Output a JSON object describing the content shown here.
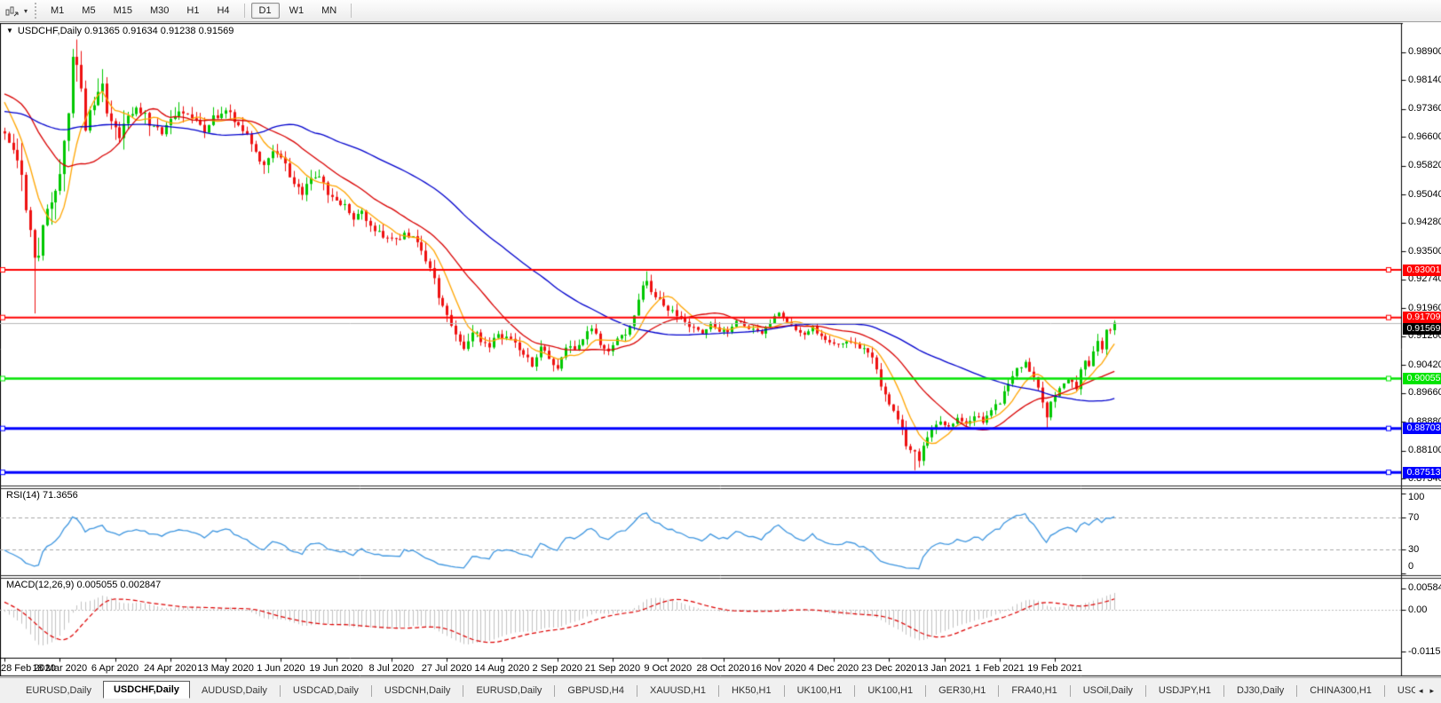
{
  "toolbar": {
    "dropdown_caret": "▾",
    "timeframes": [
      "M1",
      "M5",
      "M15",
      "M30",
      "H1",
      "H4",
      "D1",
      "W1",
      "MN"
    ],
    "active_timeframe": "D1"
  },
  "chart": {
    "collapse_caret": "▼",
    "title_symbol": "USDCHF,Daily",
    "ohlc": {
      "open": "0.91365",
      "high": "0.91634",
      "low": "0.91238",
      "close": "0.91569"
    }
  },
  "chart_data": {
    "type": "candlestick",
    "symbol": "USDCHF",
    "timeframe": "Daily",
    "bars": 262,
    "last_bar": {
      "open": 0.91365,
      "high": 0.91634,
      "low": 0.91238,
      "close": 0.91569
    },
    "candle_colors": {
      "up": "#00C800",
      "down": "#EE1111"
    },
    "price_axis": {
      "ticks": [
        "0.98900",
        "0.98140",
        "0.97360",
        "0.96600",
        "0.95820",
        "0.95040",
        "0.94280",
        "0.93500",
        "0.92740",
        "0.91960",
        "0.91200",
        "0.90420",
        "0.89660",
        "0.88880",
        "0.88100",
        "0.87340"
      ],
      "max": 0.9952,
      "min": 0.8718
    },
    "levels": [
      {
        "price": 0.93001,
        "label": "0.93001",
        "color": "#FF0000",
        "width": 2
      },
      {
        "price": 0.91709,
        "label": "0.91709",
        "color": "#FF0000",
        "width": 2
      },
      {
        "price": 0.90055,
        "label": "0.90055",
        "color": "#00E400",
        "width": 2.5
      },
      {
        "price": 0.88703,
        "label": "0.88703",
        "color": "#0000FF",
        "width": 3
      },
      {
        "price": 0.87513,
        "label": "0.87513",
        "color": "#0000FF",
        "width": 3
      }
    ],
    "current_price": {
      "value": 0.91569,
      "label": "0.91569",
      "line_color": "#B8B8B8",
      "label_bg": "#000000"
    },
    "moving_averages": [
      {
        "period": 8,
        "color": "#FFA500"
      },
      {
        "period": 21,
        "color": "#D90000"
      },
      {
        "period": 55,
        "color": "#0000CD"
      }
    ],
    "pre_path": [
      [
        -60,
        0.97
      ],
      [
        -40,
        0.9695
      ],
      [
        -25,
        0.9705
      ],
      [
        -12,
        0.98
      ],
      [
        -8,
        0.9848
      ],
      [
        -4,
        0.979
      ],
      [
        -1,
        0.9668
      ]
    ],
    "price_path": [
      [
        0,
        0.9665
      ],
      [
        2,
        0.9612
      ],
      [
        4,
        0.9555
      ],
      [
        6,
        0.94
      ],
      [
        7,
        0.931
      ],
      [
        8,
        0.9355
      ],
      [
        9,
        0.942
      ],
      [
        11,
        0.947
      ],
      [
        13,
        0.9555
      ],
      [
        15,
        0.9745
      ],
      [
        16,
        0.9855
      ],
      [
        17,
        0.983
      ],
      [
        18,
        0.977
      ],
      [
        19,
        0.969
      ],
      [
        21,
        0.9755
      ],
      [
        23,
        0.9785
      ],
      [
        25,
        0.97
      ],
      [
        27,
        0.9665
      ],
      [
        29,
        0.972
      ],
      [
        31,
        0.9742
      ],
      [
        34,
        0.97
      ],
      [
        37,
        0.9672
      ],
      [
        39,
        0.9715
      ],
      [
        41,
        0.9733
      ],
      [
        44,
        0.9705
      ],
      [
        47,
        0.9682
      ],
      [
        49,
        0.9712
      ],
      [
        52,
        0.9728
      ],
      [
        55,
        0.97
      ],
      [
        57,
        0.9668
      ],
      [
        59,
        0.9612
      ],
      [
        61,
        0.9586
      ],
      [
        63,
        0.9628
      ],
      [
        65,
        0.9608
      ],
      [
        68,
        0.9532
      ],
      [
        70,
        0.9506
      ],
      [
        72,
        0.9542
      ],
      [
        74,
        0.9558
      ],
      [
        76,
        0.9512
      ],
      [
        78,
        0.9482
      ],
      [
        80,
        0.9474
      ],
      [
        82,
        0.9442
      ],
      [
        84,
        0.9458
      ],
      [
        86,
        0.9422
      ],
      [
        88,
        0.9402
      ],
      [
        90,
        0.9386
      ],
      [
        92,
        0.9379
      ],
      [
        94,
        0.9398
      ],
      [
        96,
        0.9389
      ],
      [
        98,
        0.9352
      ],
      [
        100,
        0.9302
      ],
      [
        102,
        0.9232
      ],
      [
        104,
        0.9182
      ],
      [
        106,
        0.9132
      ],
      [
        108,
        0.9088
      ],
      [
        110,
        0.9136
      ],
      [
        112,
        0.9112
      ],
      [
        114,
        0.9088
      ],
      [
        116,
        0.9128
      ],
      [
        118,
        0.9116
      ],
      [
        120,
        0.9104
      ],
      [
        122,
        0.9072
      ],
      [
        124,
        0.9042
      ],
      [
        126,
        0.9088
      ],
      [
        128,
        0.9062
      ],
      [
        130,
        0.9036
      ],
      [
        132,
        0.9094
      ],
      [
        134,
        0.9082
      ],
      [
        136,
        0.9118
      ],
      [
        138,
        0.9144
      ],
      [
        140,
        0.9102
      ],
      [
        142,
        0.9082
      ],
      [
        144,
        0.9108
      ],
      [
        146,
        0.913
      ],
      [
        148,
        0.9175
      ],
      [
        149,
        0.9225
      ],
      [
        150,
        0.9262
      ],
      [
        151,
        0.9278
      ],
      [
        152,
        0.9242
      ],
      [
        154,
        0.9214
      ],
      [
        156,
        0.919
      ],
      [
        158,
        0.9178
      ],
      [
        160,
        0.916
      ],
      [
        162,
        0.9142
      ],
      [
        164,
        0.913
      ],
      [
        166,
        0.9154
      ],
      [
        168,
        0.9136
      ],
      [
        170,
        0.9128
      ],
      [
        172,
        0.9164
      ],
      [
        174,
        0.915
      ],
      [
        176,
        0.9136
      ],
      [
        178,
        0.9124
      ],
      [
        180,
        0.9158
      ],
      [
        182,
        0.918
      ],
      [
        184,
        0.9162
      ],
      [
        186,
        0.914
      ],
      [
        188,
        0.9124
      ],
      [
        190,
        0.9144
      ],
      [
        192,
        0.912
      ],
      [
        194,
        0.9104
      ],
      [
        196,
        0.9094
      ],
      [
        198,
        0.911
      ],
      [
        200,
        0.91
      ],
      [
        202,
        0.9086
      ],
      [
        204,
        0.9066
      ],
      [
        206,
        0.8992
      ],
      [
        208,
        0.894
      ],
      [
        210,
        0.8898
      ],
      [
        212,
        0.883
      ],
      [
        214,
        0.88
      ],
      [
        215,
        0.8778
      ],
      [
        216,
        0.8822
      ],
      [
        218,
        0.8868
      ],
      [
        220,
        0.8884
      ],
      [
        222,
        0.887
      ],
      [
        224,
        0.8894
      ],
      [
        226,
        0.888
      ],
      [
        228,
        0.8904
      ],
      [
        230,
        0.889
      ],
      [
        232,
        0.8918
      ],
      [
        234,
        0.8944
      ],
      [
        236,
        0.8988
      ],
      [
        238,
        0.9028
      ],
      [
        240,
        0.9045
      ],
      [
        242,
        0.9005
      ],
      [
        244,
        0.8945
      ],
      [
        245,
        0.8905
      ],
      [
        246,
        0.894
      ],
      [
        248,
        0.8975
      ],
      [
        250,
        0.9
      ],
      [
        252,
        0.8982
      ],
      [
        253,
        0.903
      ],
      [
        254,
        0.9055
      ],
      [
        255,
        0.9045
      ],
      [
        256,
        0.9075
      ],
      [
        257,
        0.9105
      ],
      [
        258,
        0.909
      ],
      [
        259,
        0.913
      ],
      [
        260,
        0.914
      ],
      [
        261,
        0.91569
      ]
    ],
    "volatility_path": [
      [
        0,
        0.005
      ],
      [
        5,
        0.0085
      ],
      [
        10,
        0.0095
      ],
      [
        16,
        0.0105
      ],
      [
        20,
        0.0085
      ],
      [
        26,
        0.006
      ],
      [
        35,
        0.0042
      ],
      [
        50,
        0.0036
      ],
      [
        60,
        0.0038
      ],
      [
        70,
        0.0036
      ],
      [
        85,
        0.003
      ],
      [
        95,
        0.0028
      ],
      [
        100,
        0.004
      ],
      [
        106,
        0.0042
      ],
      [
        112,
        0.003
      ],
      [
        125,
        0.0028
      ],
      [
        135,
        0.0026
      ],
      [
        145,
        0.0026
      ],
      [
        150,
        0.0034
      ],
      [
        156,
        0.0028
      ],
      [
        165,
        0.0022
      ],
      [
        175,
        0.002
      ],
      [
        185,
        0.0022
      ],
      [
        195,
        0.0022
      ],
      [
        205,
        0.003
      ],
      [
        212,
        0.0032
      ],
      [
        216,
        0.0028
      ],
      [
        225,
        0.002
      ],
      [
        235,
        0.0024
      ],
      [
        242,
        0.0026
      ],
      [
        248,
        0.0026
      ],
      [
        255,
        0.0032
      ],
      [
        261,
        0.0034
      ]
    ],
    "wick_overrides": {
      "7": {
        "low": 0.9182
      },
      "16": {
        "high": 0.989
      },
      "151": {
        "high": 0.9296
      },
      "214": {
        "low": 0.8757
      },
      "245": {
        "low": 0.8871
      }
    },
    "rsi": {
      "label": "RSI(14) 71.3656",
      "period": 14,
      "current": 71.3656,
      "line_color": "#3E96E0",
      "level_lines": [
        70,
        30
      ],
      "axis_ticks": [
        "100",
        "70",
        "30",
        "0"
      ]
    },
    "macd": {
      "label": "MACD(12,26,9) 0.005055 0.002847",
      "fast": 12,
      "slow": 26,
      "signal": 9,
      "current_macd": 0.005055,
      "current_signal": 0.002847,
      "histogram_color": "#C2C2C2",
      "signal_color": "#DD0000",
      "axis_ticks": [
        "0.005844",
        "0.00",
        "-0.011516"
      ]
    },
    "x_axis": {
      "bars_per_tick": 13,
      "dates": [
        "28 Feb 2020",
        "18 Mar 2020",
        "6 Apr 2020",
        "24 Apr 2020",
        "13 May 2020",
        "1 Jun 2020",
        "19 Jun 2020",
        "8 Jul 2020",
        "27 Jul 2020",
        "14 Aug 2020",
        "2 Sep 2020",
        "21 Sep 2020",
        "9 Oct 2020",
        "28 Oct 2020",
        "16 Nov 2020",
        "4 Dec 2020",
        "23 Dec 2020",
        "13 Jan 2021",
        "1 Feb 2021",
        "19 Feb 2021"
      ]
    }
  },
  "tabs": {
    "scroll_left": "◂",
    "scroll_right": "▸",
    "items": [
      {
        "label": "EURUSD,Daily",
        "active": false
      },
      {
        "label": "USDCHF,Daily",
        "active": true
      },
      {
        "label": "AUDUSD,Daily",
        "active": false
      },
      {
        "label": "USDCAD,Daily",
        "active": false
      },
      {
        "label": "USDCNH,Daily",
        "active": false
      },
      {
        "label": "EURUSD,Daily",
        "active": false
      },
      {
        "label": "GBPUSD,H4",
        "active": false
      },
      {
        "label": "XAUUSD,H1",
        "active": false
      },
      {
        "label": "HK50,H1",
        "active": false
      },
      {
        "label": "UK100,H1",
        "active": false
      },
      {
        "label": "UK100,H1",
        "active": false
      },
      {
        "label": "GER30,H1",
        "active": false
      },
      {
        "label": "FRA40,H1",
        "active": false
      },
      {
        "label": "USOil,Daily",
        "active": false
      },
      {
        "label": "USDJPY,H1",
        "active": false
      },
      {
        "label": "DJ30,Daily",
        "active": false
      },
      {
        "label": "CHINA300,H1",
        "active": false
      },
      {
        "label": "USOil,",
        "active": false
      }
    ]
  }
}
